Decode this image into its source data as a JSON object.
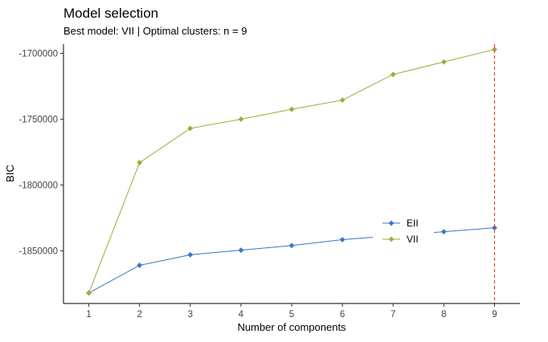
{
  "chart_data": {
    "type": "line",
    "title": "Model selection",
    "subtitle": "Best model: VII | Optimal clusters: n = 9",
    "xlabel": "Number of components",
    "ylabel": "BIC",
    "x": [
      1,
      2,
      3,
      4,
      5,
      6,
      7,
      8,
      9
    ],
    "x_tick_labels": [
      "1",
      "2",
      "3",
      "4",
      "5",
      "6",
      "7",
      "8",
      "9"
    ],
    "xlim": [
      0.5,
      9.5
    ],
    "ylim": [
      -1890000,
      -1693000
    ],
    "y_ticks": [
      -1850000,
      -1800000,
      -1750000,
      -1700000
    ],
    "y_tick_labels": [
      "-1850000",
      "-1800000",
      "-1750000",
      "-1700000"
    ],
    "grid": false,
    "legend_position": "inside, lower right",
    "optimal_x": 9,
    "optimal_line_color": "#e8413a",
    "series": [
      {
        "name": "EII",
        "color": "#3a75c4",
        "values": [
          -1882000,
          -1861000,
          -1853000,
          -1849500,
          -1846000,
          -1841500,
          -1838500,
          -1835500,
          -1832500
        ]
      },
      {
        "name": "VII",
        "color": "#a6a63c",
        "values": [
          -1882000,
          -1783000,
          -1757000,
          -1750000,
          -1742500,
          -1735500,
          -1716000,
          -1706500,
          -1697000
        ]
      }
    ]
  }
}
